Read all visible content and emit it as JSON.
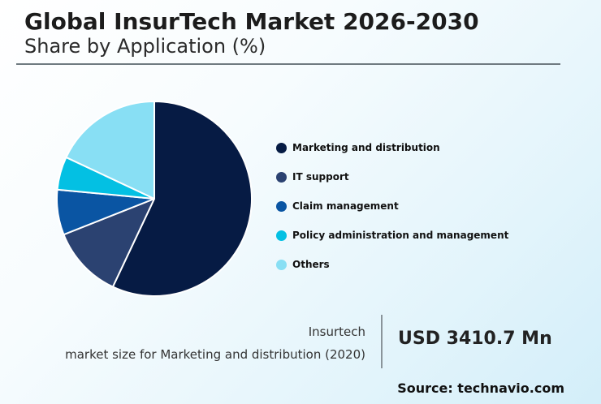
{
  "header": {
    "title": "Global InsurTech Market 2026-2030",
    "subtitle": "Share by Application (%)"
  },
  "chart_data": {
    "type": "pie",
    "title": "Global InsurTech Market 2026-2030",
    "subtitle": "Share by Application (%)",
    "legend_position": "right",
    "categories": [
      "Marketing and distribution",
      "IT support",
      "Claim management",
      "Policy administration and management",
      "Others"
    ],
    "values": [
      57,
      12,
      7.5,
      5.5,
      18
    ],
    "colors": [
      "#061b44",
      "#2b4271",
      "#0a55a3",
      "#03c0e3",
      "#88dff4"
    ]
  },
  "info": {
    "line1": "Insurtech",
    "line2": "market size for Marketing and distribution (2020)",
    "value": "USD 3410.7 Mn"
  },
  "source": "Source: technavio.com"
}
